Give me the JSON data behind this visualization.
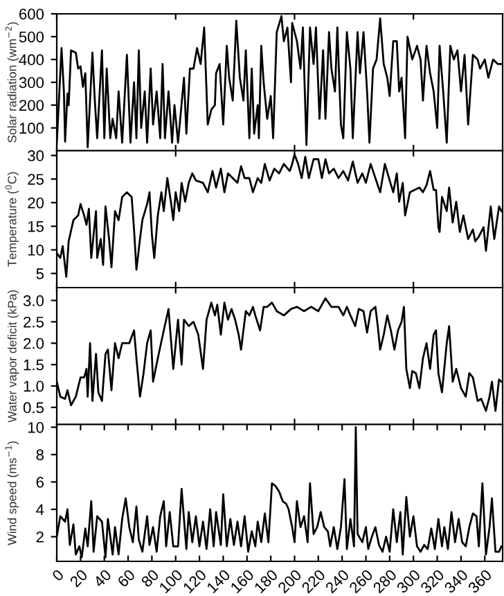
{
  "chart_data": [
    {
      "type": "line",
      "ylabel": "Solar radiation (wm$^{−2}$)",
      "color": "#000000",
      "xlim": [
        0,
        375
      ],
      "ylim": [
        0,
        600
      ],
      "yticks": [
        100,
        200,
        300,
        400,
        500,
        600
      ],
      "tick_labels": "y",
      "grid": false,
      "x": [
        0,
        4,
        6,
        7,
        9,
        10,
        12,
        16,
        18,
        20,
        22,
        24,
        26,
        30,
        32,
        34,
        38,
        40,
        42,
        45,
        47,
        50,
        52,
        55,
        59,
        62,
        65,
        67,
        69,
        71,
        74,
        76,
        79,
        81,
        84,
        87,
        89,
        91,
        94,
        97,
        99,
        102,
        107,
        109,
        112,
        115,
        118,
        121,
        124,
        127,
        130,
        133,
        134,
        137,
        140,
        143,
        145,
        148,
        151,
        154,
        157,
        159,
        162,
        164,
        166,
        169,
        170,
        172,
        174,
        177,
        180,
        182,
        185,
        189,
        191,
        194,
        197,
        198,
        202,
        205,
        207,
        210,
        213,
        216,
        218,
        221,
        224,
        226,
        229,
        231,
        234,
        236,
        239,
        241,
        244,
        247,
        249,
        253,
        255,
        258,
        261,
        263,
        266,
        269,
        272,
        275,
        278,
        280,
        283,
        286,
        288,
        290,
        293,
        295,
        299,
        303,
        306,
        308,
        311,
        314,
        317,
        320,
        322,
        325,
        328,
        331,
        334,
        337,
        340,
        343,
        346,
        350,
        354,
        356,
        360,
        363,
        367,
        371,
        374
      ],
      "values": [
        30,
        450,
        260,
        40,
        250,
        200,
        440,
        430,
        360,
        370,
        280,
        340,
        15,
        430,
        220,
        55,
        440,
        55,
        360,
        55,
        140,
        55,
        260,
        35,
        420,
        35,
        300,
        55,
        440,
        100,
        260,
        35,
        360,
        115,
        260,
        55,
        380,
        55,
        260,
        35,
        200,
        35,
        320,
        75,
        360,
        360,
        450,
        380,
        540,
        115,
        180,
        200,
        340,
        380,
        115,
        460,
        320,
        220,
        570,
        320,
        220,
        440,
        55,
        360,
        75,
        200,
        55,
        460,
        300,
        140,
        240,
        55,
        520,
        590,
        480,
        540,
        300,
        560,
        480,
        360,
        540,
        25,
        540,
        380,
        540,
        140,
        440,
        140,
        520,
        360,
        260,
        540,
        115,
        55,
        520,
        360,
        55,
        520,
        340,
        520,
        260,
        35,
        360,
        400,
        580,
        380,
        320,
        240,
        480,
        480,
        260,
        320,
        55,
        500,
        400,
        460,
        400,
        220,
        460,
        340,
        260,
        100,
        460,
        260,
        35,
        460,
        400,
        440,
        260,
        420,
        115,
        420,
        400,
        360,
        400,
        320,
        400,
        380,
        380
      ]
    },
    {
      "type": "line",
      "ylabel": "Temperature ($^{0}$C)",
      "color": "#000000",
      "xlim": [
        0,
        375
      ],
      "ylim": [
        2,
        31
      ],
      "yticks": [
        5,
        10,
        15,
        20,
        25,
        30
      ],
      "tick_labels": "y",
      "grid": false,
      "x": [
        0,
        3,
        5,
        8,
        10,
        14,
        18,
        20,
        23,
        25,
        27,
        29,
        33,
        34,
        37,
        39,
        41,
        44,
        46,
        49,
        52,
        55,
        59,
        63,
        65,
        67,
        70,
        72,
        76,
        78,
        80,
        82,
        85,
        88,
        90,
        93,
        96,
        98,
        100,
        103,
        105,
        108,
        111,
        114,
        117,
        123,
        127,
        131,
        134,
        138,
        141,
        144,
        148,
        152,
        155,
        158,
        162,
        165,
        169,
        172,
        175,
        179,
        183,
        187,
        191,
        196,
        198,
        200,
        203,
        206,
        209,
        212,
        216,
        220,
        223,
        226,
        229,
        233,
        237,
        241,
        245,
        249,
        253,
        257,
        260,
        264,
        268,
        272,
        276,
        280,
        283,
        286,
        288,
        291,
        293,
        297,
        301,
        305,
        308,
        311,
        314,
        317,
        319,
        321,
        322,
        324,
        328,
        330,
        333,
        336,
        339,
        342,
        346,
        350,
        352,
        355,
        359,
        361,
        365,
        368,
        372,
        374
      ],
      "values": [
        9.3,
        8.3,
        10.8,
        4.3,
        11.8,
        16.3,
        17.3,
        19.7,
        17.3,
        15.3,
        18.7,
        8.3,
        18.2,
        8.3,
        12.3,
        6.8,
        19.2,
        12.3,
        6.3,
        18.2,
        16.3,
        21.2,
        22.2,
        21.2,
        14.3,
        5.8,
        12.3,
        16.3,
        19.7,
        22.2,
        13.3,
        8.3,
        17.3,
        22.2,
        18.2,
        25.2,
        20.2,
        16.3,
        22.2,
        18.2,
        24.2,
        20.2,
        24.2,
        26.2,
        24.7,
        24.2,
        22.2,
        26.7,
        23.2,
        27.2,
        22.2,
        26.2,
        25.2,
        24.2,
        27.7,
        25.2,
        25.2,
        22.2,
        25.2,
        24.2,
        28.2,
        24.7,
        27.2,
        26.2,
        28.2,
        26.7,
        28.2,
        30.2,
        28.2,
        25.2,
        29.7,
        25.2,
        29.2,
        29.2,
        25.2,
        29.2,
        26.2,
        27.2,
        25.2,
        26.7,
        24.7,
        28.7,
        24.2,
        26.2,
        24.2,
        28.2,
        25.2,
        22.2,
        28.2,
        24.7,
        22.2,
        26.2,
        20.2,
        24.2,
        17.3,
        22.2,
        22.7,
        23.2,
        22.2,
        23.7,
        26.7,
        22.7,
        22.7,
        14.8,
        13.8,
        21.2,
        18.2,
        23.2,
        15.8,
        20.2,
        13.8,
        17.3,
        12.3,
        14.3,
        11.8,
        12.8,
        14.8,
        9.8,
        19.2,
        12.3,
        19.2,
        18.2
      ]
    },
    {
      "type": "line",
      "ylabel": "Water vapor deficit (kPa)",
      "color": "#000000",
      "xlim": [
        0,
        375
      ],
      "ylim": [
        0.1,
        3.3
      ],
      "yticks": [
        {
          "value": 0.5,
          "label": "0.5"
        },
        {
          "value": 1,
          "label": "1.0"
        },
        {
          "value": 1.5,
          "label": "1.5"
        },
        {
          "value": 2,
          "label": "2.0"
        },
        {
          "value": 2.5,
          "label": "2.5"
        },
        {
          "value": 3,
          "label": "3.0"
        }
      ],
      "tick_labels": "y",
      "grid": false,
      "x": [
        0,
        3,
        7,
        9,
        12,
        16,
        20,
        23,
        25,
        26,
        28,
        30,
        33,
        35,
        38,
        41,
        43,
        46,
        49,
        52,
        55,
        61,
        65,
        67,
        70,
        73,
        76,
        79,
        81,
        85,
        90,
        94,
        98,
        102,
        105,
        107,
        111,
        115,
        119,
        123,
        126,
        130,
        133,
        135,
        138,
        141,
        144,
        147,
        150,
        153,
        155,
        159,
        162,
        165,
        167,
        171,
        174,
        177,
        181,
        185,
        191,
        197,
        202,
        208,
        214,
        220,
        226,
        231,
        237,
        241,
        244,
        247,
        251,
        254,
        258,
        261,
        264,
        268,
        270,
        272,
        275,
        278,
        281,
        284,
        287,
        290,
        292,
        294,
        297,
        299,
        302,
        305,
        308,
        311,
        314,
        317,
        319,
        321,
        324,
        328,
        330,
        333,
        336,
        340,
        344,
        347,
        350,
        354,
        357,
        361,
        364,
        366,
        369,
        372,
        374
      ],
      "values": [
        1.1,
        0.75,
        0.7,
        0.9,
        0.55,
        0.75,
        1.2,
        1.2,
        1.4,
        0.75,
        2.0,
        0.65,
        1.75,
        0.85,
        0.65,
        1.75,
        1.85,
        0.9,
        2.0,
        1.65,
        2.0,
        2.0,
        2.3,
        1.65,
        0.75,
        1.3,
        2.0,
        2.3,
        1.1,
        1.65,
        2.3,
        2.8,
        1.4,
        2.55,
        1.5,
        2.55,
        2.4,
        2.5,
        2.2,
        1.4,
        2.55,
        2.95,
        2.65,
        2.9,
        2.2,
        2.95,
        2.55,
        2.8,
        2.55,
        2.2,
        1.85,
        2.75,
        2.65,
        2.85,
        2.65,
        2.3,
        2.85,
        2.85,
        2.95,
        2.75,
        2.65,
        2.8,
        2.85,
        2.75,
        2.85,
        2.75,
        3.05,
        2.85,
        2.85,
        2.65,
        2.85,
        2.65,
        2.4,
        2.8,
        2.75,
        2.25,
        2.75,
        2.85,
        2.4,
        1.85,
        2.2,
        2.65,
        2.3,
        1.85,
        2.3,
        2.5,
        2.85,
        1.4,
        0.95,
        1.35,
        1.3,
        0.95,
        1.65,
        2.0,
        1.4,
        2.2,
        2.3,
        1.3,
        0.85,
        2.0,
        2.4,
        1.1,
        1.4,
        0.95,
        0.75,
        1.3,
        1.2,
        0.65,
        0.7,
        0.42,
        0.75,
        1.1,
        0.42,
        1.15,
        1.1
      ]
    },
    {
      "type": "line",
      "ylabel": "Wind speed (ms$^{−1}$)",
      "color": "#000000",
      "xlim": [
        0,
        375
      ],
      "ylim": [
        0.2,
        10.2
      ],
      "yticks": [
        2,
        4,
        6,
        8,
        10
      ],
      "xticks": [
        0,
        20,
        40,
        60,
        80,
        100,
        120,
        140,
        160,
        180,
        200,
        220,
        240,
        260,
        280,
        300,
        320,
        340,
        360
      ],
      "grid": false,
      "x": [
        0,
        3,
        7,
        9,
        11,
        14,
        16,
        19,
        21,
        24,
        26,
        29,
        31,
        34,
        38,
        41,
        43,
        47,
        49,
        52,
        55,
        58,
        61,
        64,
        67,
        69,
        72,
        76,
        78,
        81,
        84,
        87,
        90,
        92,
        95,
        98,
        102,
        105,
        109,
        111,
        114,
        117,
        120,
        123,
        126,
        129,
        132,
        134,
        138,
        140,
        143,
        146,
        149,
        152,
        155,
        158,
        161,
        164,
        167,
        169,
        172,
        175,
        178,
        181,
        184,
        187,
        190,
        193,
        195,
        198,
        200,
        202,
        205,
        208,
        211,
        213,
        216,
        219,
        222,
        225,
        228,
        230,
        233,
        236,
        239,
        242,
        244,
        247,
        250,
        251.5,
        253,
        257,
        260,
        262,
        265,
        268,
        271,
        274,
        277,
        280,
        283,
        286,
        289,
        291,
        294,
        297,
        300,
        303,
        306,
        309,
        312,
        315,
        318,
        321,
        324,
        326,
        329,
        332,
        335,
        338,
        341,
        344,
        347,
        350,
        353,
        355,
        358,
        361,
        364,
        366,
        369,
        372,
        374
      ],
      "values": [
        2.0,
        3.5,
        3.1,
        4.0,
        1.4,
        2.9,
        0.7,
        1.3,
        0.5,
        2.6,
        1.3,
        4.6,
        0.9,
        3.5,
        3.1,
        0.5,
        3.3,
        0.7,
        2.7,
        0.7,
        3.3,
        4.8,
        2.7,
        1.6,
        4.2,
        1.8,
        0.9,
        3.5,
        1.4,
        2.7,
        0.9,
        3.5,
        4.6,
        1.3,
        3.8,
        1.3,
        1.3,
        5.5,
        1.1,
        3.8,
        1.6,
        3.5,
        1.3,
        3.1,
        1.1,
        4.0,
        1.3,
        3.8,
        1.4,
        5.1,
        1.3,
        3.3,
        1.4,
        3.1,
        1.3,
        3.5,
        0.9,
        2.4,
        1.3,
        3.1,
        1.6,
        3.7,
        1.6,
        5.9,
        5.7,
        5.3,
        4.6,
        4.4,
        4.0,
        2.7,
        1.6,
        4.6,
        2.7,
        3.5,
        1.6,
        5.9,
        2.2,
        2.7,
        3.8,
        2.7,
        2.4,
        1.3,
        2.7,
        1.1,
        2.7,
        6.2,
        1.1,
        3.3,
        1.3,
        10,
        2.2,
        1.6,
        2.7,
        1.1,
        2.0,
        2.7,
        1.4,
        0.9,
        2.0,
        0.9,
        4.0,
        1.6,
        3.8,
        0.7,
        4.9,
        2.0,
        3.5,
        1.3,
        0.9,
        1.4,
        1.1,
        2.6,
        1.1,
        3.3,
        1.3,
        2.7,
        1.1,
        3.8,
        1.6,
        3.3,
        1.6,
        1.3,
        2.7,
        3.7,
        3.5,
        1.3,
        5.9,
        0.7,
        2.7,
        4.8,
        0.9,
        0.9,
        1.3
      ]
    }
  ]
}
